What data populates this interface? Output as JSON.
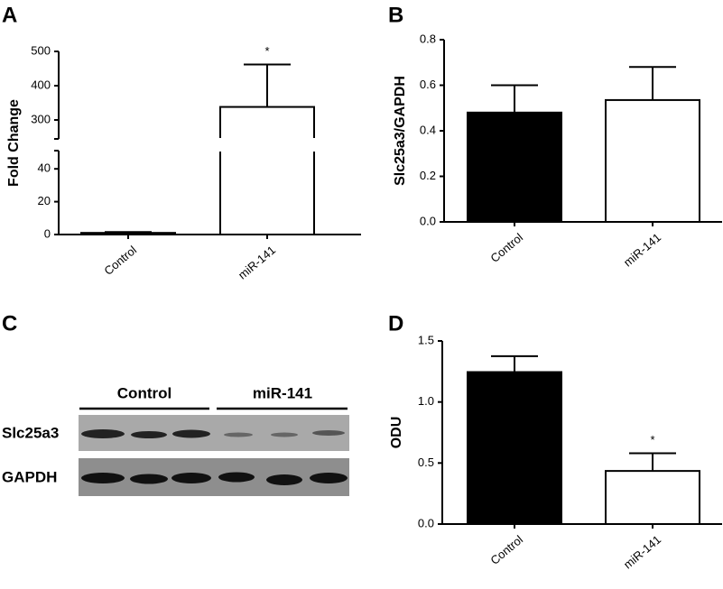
{
  "chart_data": [
    {
      "type": "bar",
      "panel": "A",
      "ylabel": "Fold Change",
      "categories": [
        "Control",
        "miR-141"
      ],
      "values": [
        1,
        338
      ],
      "errors": [
        0.5,
        124
      ],
      "colors": [
        "#ffffff",
        "#ffffff"
      ],
      "ylim": [
        0,
        500
      ],
      "axis_break": [
        50,
        250
      ],
      "yticks": [
        0,
        20,
        40,
        300,
        400,
        500
      ],
      "annotations": [
        {
          "category": "miR-141",
          "text": "*"
        }
      ]
    },
    {
      "type": "bar",
      "panel": "B",
      "ylabel": "Slc25a3/GAPDH",
      "categories": [
        "Control",
        "miR-141"
      ],
      "values": [
        0.48,
        0.535
      ],
      "errors": [
        0.12,
        0.145
      ],
      "colors": [
        "#000000",
        "#ffffff"
      ],
      "ylim": [
        0,
        0.8
      ],
      "yticks": [
        {
          "value": 0,
          "label": "0.0"
        },
        0.2,
        0.4,
        0.6,
        0.8
      ]
    },
    {
      "type": "bar",
      "panel": "D",
      "ylabel": "ODU",
      "categories": [
        "Control",
        "miR-141"
      ],
      "values": [
        1.245,
        0.435
      ],
      "errors": [
        0.13,
        0.145
      ],
      "colors": [
        "#000000",
        "#ffffff"
      ],
      "ylim": [
        0,
        1.5
      ],
      "yticks": [
        {
          "value": 0,
          "label": "0.0"
        },
        0.5,
        {
          "value": 1,
          "label": "1.0"
        },
        1.5
      ],
      "annotations": [
        {
          "category": "miR-141",
          "text": "*"
        }
      ]
    }
  ],
  "blot": {
    "panel": "C",
    "groups": [
      "Control",
      "miR-141"
    ],
    "rows": [
      "Slc25a3",
      "GAPDH"
    ]
  }
}
